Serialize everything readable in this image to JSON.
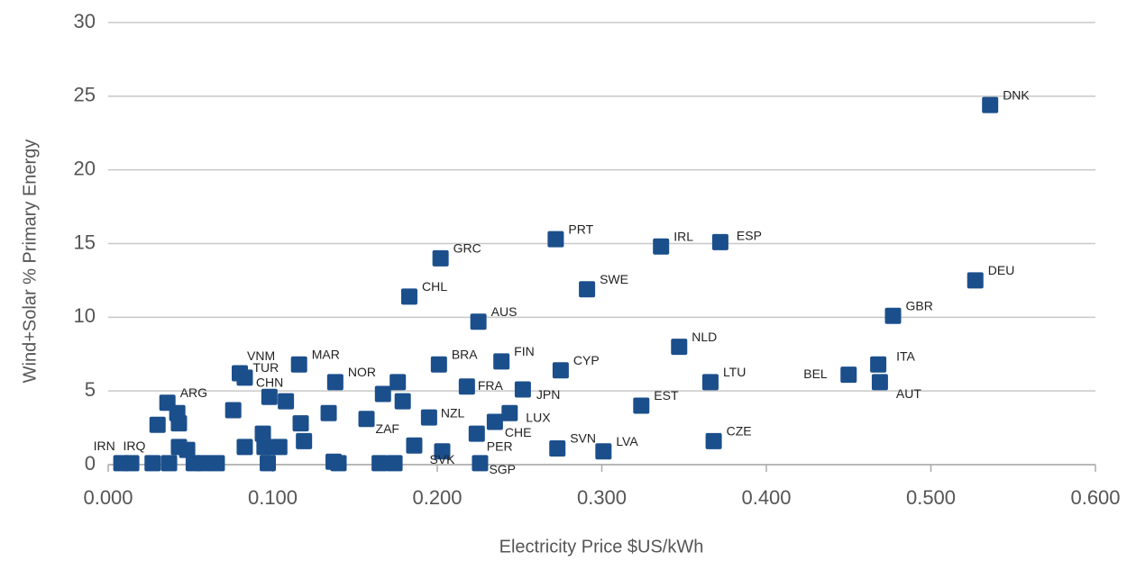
{
  "chart_data": {
    "type": "scatter",
    "xlabel": "Electricity Price $US/kWh",
    "ylabel": "Wind+Solar % Primary Energy",
    "xlim": [
      0,
      0.6
    ],
    "ylim": [
      0,
      30
    ],
    "xticks": [
      {
        "value": 0,
        "label": "0.000"
      },
      {
        "value": 0.1,
        "label": "0.100"
      },
      {
        "value": 0.2,
        "label": "0.200"
      },
      {
        "value": 0.3,
        "label": "0.300"
      },
      {
        "value": 0.4,
        "label": "0.400"
      },
      {
        "value": 0.5,
        "label": "0.500"
      },
      {
        "value": 0.6,
        "label": "0.600"
      }
    ],
    "yticks": [
      0,
      5,
      10,
      15,
      20,
      25,
      30
    ],
    "grid": true,
    "color": "#1b4f8c",
    "x": [
      0.536,
      0.527,
      0.477,
      0.468,
      0.45,
      0.469,
      0.368,
      0.372,
      0.336,
      0.347,
      0.366,
      0.324,
      0.272,
      0.291,
      0.275,
      0.273,
      0.301,
      0.202,
      0.183,
      0.225,
      0.201,
      0.239,
      0.252,
      0.218,
      0.244,
      0.235,
      0.224,
      0.226,
      0.203,
      0.195,
      0.157,
      0.138,
      0.116,
      0.08,
      0.083,
      0.098,
      0.036,
      0.008,
      0.014,
      0.027,
      0.03,
      0.042,
      0.043,
      0.037,
      0.043,
      0.048,
      0.052,
      0.058,
      0.066,
      0.076,
      0.083,
      0.094,
      0.095,
      0.097,
      0.104,
      0.108,
      0.117,
      0.119,
      0.134,
      0.14,
      0.165,
      0.167,
      0.176,
      0.179,
      0.174,
      0.186,
      0.137
    ],
    "values": [
      24.4,
      12.5,
      10.1,
      6.8,
      6.1,
      5.6,
      1.6,
      15.1,
      14.8,
      8.0,
      5.6,
      4.0,
      15.3,
      11.9,
      6.4,
      1.1,
      0.9,
      14.0,
      11.4,
      9.7,
      6.8,
      7.0,
      5.1,
      5.3,
      3.5,
      2.9,
      2.1,
      0.1,
      0.9,
      3.2,
      3.1,
      5.6,
      6.8,
      6.2,
      5.9,
      4.6,
      4.2,
      0.1,
      0.1,
      0.1,
      2.7,
      3.5,
      2.8,
      0.1,
      1.2,
      1.0,
      0.1,
      0.1,
      0.1,
      3.7,
      1.2,
      2.1,
      1.2,
      0.1,
      1.2,
      4.3,
      2.8,
      1.6,
      3.5,
      0.1,
      0.1,
      4.8,
      5.6,
      4.3,
      0.1,
      1.3,
      0.2
    ],
    "point_labels": [
      "DNK",
      "DEU",
      "GBR",
      "ITA",
      "BEL",
      "AUT",
      "CZE",
      "ESP",
      "IRL",
      "NLD",
      "LTU",
      "EST",
      "PRT",
      "SWE",
      "CYP",
      "SVN",
      "LVA",
      "GRC",
      "CHL",
      "AUS",
      "BRA",
      "FIN",
      "JPN",
      "FRA",
      "LUX",
      "CHE",
      "PER",
      "SGP",
      "SVK",
      "NZL",
      "ZAF",
      "NOR",
      "MAR",
      "VNM",
      "TUR",
      "CHN",
      "ARG",
      "IRN",
      "IRQ",
      null,
      null,
      null,
      null,
      null,
      null,
      null,
      null,
      null,
      null,
      null,
      null,
      null,
      null,
      null,
      null,
      null,
      null,
      null,
      null,
      null,
      null,
      null,
      null,
      null,
      null,
      null,
      null
    ]
  }
}
